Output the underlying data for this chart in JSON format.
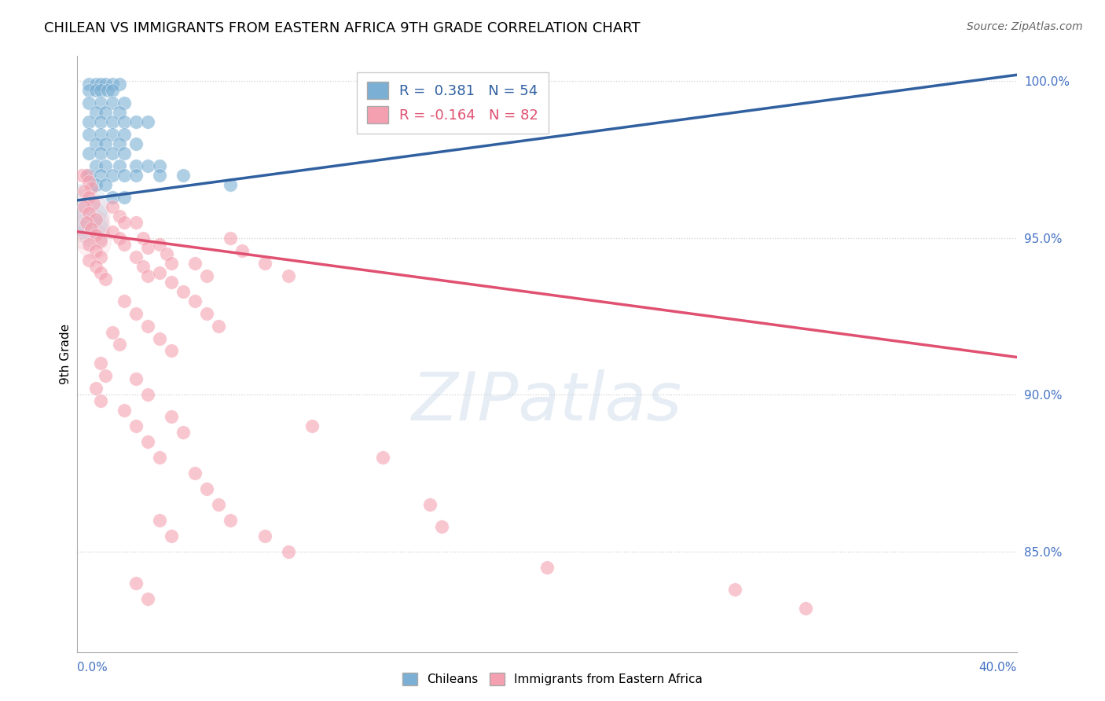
{
  "title": "CHILEAN VS IMMIGRANTS FROM EASTERN AFRICA 9TH GRADE CORRELATION CHART",
  "source": "Source: ZipAtlas.com",
  "ylabel": "9th Grade",
  "ylabel_right_labels": [
    "100.0%",
    "95.0%",
    "90.0%",
    "85.0%"
  ],
  "ylabel_right_values": [
    1.0,
    0.95,
    0.9,
    0.85
  ],
  "xlim": [
    0.0,
    0.4
  ],
  "ylim": [
    0.818,
    1.008
  ],
  "watermark_text": "ZIPatlas",
  "blue_color": "#7BAFD4",
  "pink_color": "#F4A0B0",
  "blue_line_color": "#3060A0",
  "pink_line_color": "#E05070",
  "grid_color": "#CCCCCC",
  "blue_line_x0": 0.0,
  "blue_line_y0": 0.962,
  "blue_line_x1": 0.4,
  "blue_line_y1": 1.002,
  "pink_line_x0": 0.0,
  "pink_line_y0": 0.952,
  "pink_line_x1": 0.4,
  "pink_line_y1": 0.912,
  "blue_scatter": [
    [
      0.005,
      0.999
    ],
    [
      0.008,
      0.999
    ],
    [
      0.01,
      0.999
    ],
    [
      0.012,
      0.999
    ],
    [
      0.015,
      0.999
    ],
    [
      0.018,
      0.999
    ],
    [
      0.005,
      0.997
    ],
    [
      0.008,
      0.997
    ],
    [
      0.01,
      0.997
    ],
    [
      0.013,
      0.997
    ],
    [
      0.015,
      0.997
    ],
    [
      0.005,
      0.993
    ],
    [
      0.01,
      0.993
    ],
    [
      0.015,
      0.993
    ],
    [
      0.02,
      0.993
    ],
    [
      0.008,
      0.99
    ],
    [
      0.012,
      0.99
    ],
    [
      0.018,
      0.99
    ],
    [
      0.005,
      0.987
    ],
    [
      0.01,
      0.987
    ],
    [
      0.015,
      0.987
    ],
    [
      0.02,
      0.987
    ],
    [
      0.025,
      0.987
    ],
    [
      0.03,
      0.987
    ],
    [
      0.005,
      0.983
    ],
    [
      0.01,
      0.983
    ],
    [
      0.015,
      0.983
    ],
    [
      0.02,
      0.983
    ],
    [
      0.008,
      0.98
    ],
    [
      0.012,
      0.98
    ],
    [
      0.018,
      0.98
    ],
    [
      0.025,
      0.98
    ],
    [
      0.005,
      0.977
    ],
    [
      0.01,
      0.977
    ],
    [
      0.015,
      0.977
    ],
    [
      0.02,
      0.977
    ],
    [
      0.008,
      0.973
    ],
    [
      0.012,
      0.973
    ],
    [
      0.018,
      0.973
    ],
    [
      0.025,
      0.973
    ],
    [
      0.03,
      0.973
    ],
    [
      0.035,
      0.973
    ],
    [
      0.005,
      0.97
    ],
    [
      0.01,
      0.97
    ],
    [
      0.015,
      0.97
    ],
    [
      0.02,
      0.97
    ],
    [
      0.025,
      0.97
    ],
    [
      0.035,
      0.97
    ],
    [
      0.045,
      0.97
    ],
    [
      0.008,
      0.967
    ],
    [
      0.012,
      0.967
    ],
    [
      0.065,
      0.967
    ],
    [
      0.015,
      0.963
    ],
    [
      0.02,
      0.963
    ]
  ],
  "pink_scatter": [
    [
      0.002,
      0.97
    ],
    [
      0.004,
      0.97
    ],
    [
      0.005,
      0.968
    ],
    [
      0.006,
      0.966
    ],
    [
      0.003,
      0.965
    ],
    [
      0.005,
      0.963
    ],
    [
      0.007,
      0.961
    ],
    [
      0.003,
      0.96
    ],
    [
      0.005,
      0.958
    ],
    [
      0.008,
      0.956
    ],
    [
      0.004,
      0.955
    ],
    [
      0.006,
      0.953
    ],
    [
      0.008,
      0.951
    ],
    [
      0.01,
      0.949
    ],
    [
      0.005,
      0.948
    ],
    [
      0.008,
      0.946
    ],
    [
      0.01,
      0.944
    ],
    [
      0.005,
      0.943
    ],
    [
      0.008,
      0.941
    ],
    [
      0.01,
      0.939
    ],
    [
      0.012,
      0.937
    ],
    [
      0.015,
      0.96
    ],
    [
      0.018,
      0.957
    ],
    [
      0.02,
      0.955
    ],
    [
      0.015,
      0.952
    ],
    [
      0.018,
      0.95
    ],
    [
      0.02,
      0.948
    ],
    [
      0.025,
      0.955
    ],
    [
      0.028,
      0.95
    ],
    [
      0.03,
      0.947
    ],
    [
      0.025,
      0.944
    ],
    [
      0.028,
      0.941
    ],
    [
      0.03,
      0.938
    ],
    [
      0.035,
      0.948
    ],
    [
      0.038,
      0.945
    ],
    [
      0.04,
      0.942
    ],
    [
      0.035,
      0.939
    ],
    [
      0.04,
      0.936
    ],
    [
      0.045,
      0.933
    ],
    [
      0.05,
      0.942
    ],
    [
      0.055,
      0.938
    ],
    [
      0.05,
      0.93
    ],
    [
      0.055,
      0.926
    ],
    [
      0.06,
      0.922
    ],
    [
      0.065,
      0.95
    ],
    [
      0.07,
      0.946
    ],
    [
      0.08,
      0.942
    ],
    [
      0.09,
      0.938
    ],
    [
      0.02,
      0.93
    ],
    [
      0.025,
      0.926
    ],
    [
      0.03,
      0.922
    ],
    [
      0.035,
      0.918
    ],
    [
      0.04,
      0.914
    ],
    [
      0.015,
      0.92
    ],
    [
      0.018,
      0.916
    ],
    [
      0.01,
      0.91
    ],
    [
      0.012,
      0.906
    ],
    [
      0.008,
      0.902
    ],
    [
      0.01,
      0.898
    ],
    [
      0.025,
      0.905
    ],
    [
      0.03,
      0.9
    ],
    [
      0.02,
      0.895
    ],
    [
      0.025,
      0.89
    ],
    [
      0.03,
      0.885
    ],
    [
      0.035,
      0.88
    ],
    [
      0.04,
      0.893
    ],
    [
      0.045,
      0.888
    ],
    [
      0.05,
      0.875
    ],
    [
      0.055,
      0.87
    ],
    [
      0.06,
      0.865
    ],
    [
      0.065,
      0.86
    ],
    [
      0.08,
      0.855
    ],
    [
      0.09,
      0.85
    ],
    [
      0.1,
      0.89
    ],
    [
      0.13,
      0.88
    ],
    [
      0.15,
      0.865
    ],
    [
      0.155,
      0.858
    ],
    [
      0.2,
      0.845
    ],
    [
      0.28,
      0.838
    ],
    [
      0.31,
      0.832
    ],
    [
      0.035,
      0.86
    ],
    [
      0.04,
      0.855
    ],
    [
      0.025,
      0.84
    ],
    [
      0.03,
      0.835
    ]
  ],
  "large_blue_circles": [
    [
      0.003,
      0.96,
      1800
    ],
    [
      0.005,
      0.956,
      1200
    ],
    [
      0.007,
      0.952,
      800
    ]
  ],
  "large_pink_circles": [
    [
      0.003,
      0.957,
      2200
    ],
    [
      0.005,
      0.953,
      1500
    ],
    [
      0.007,
      0.949,
      1000
    ]
  ]
}
